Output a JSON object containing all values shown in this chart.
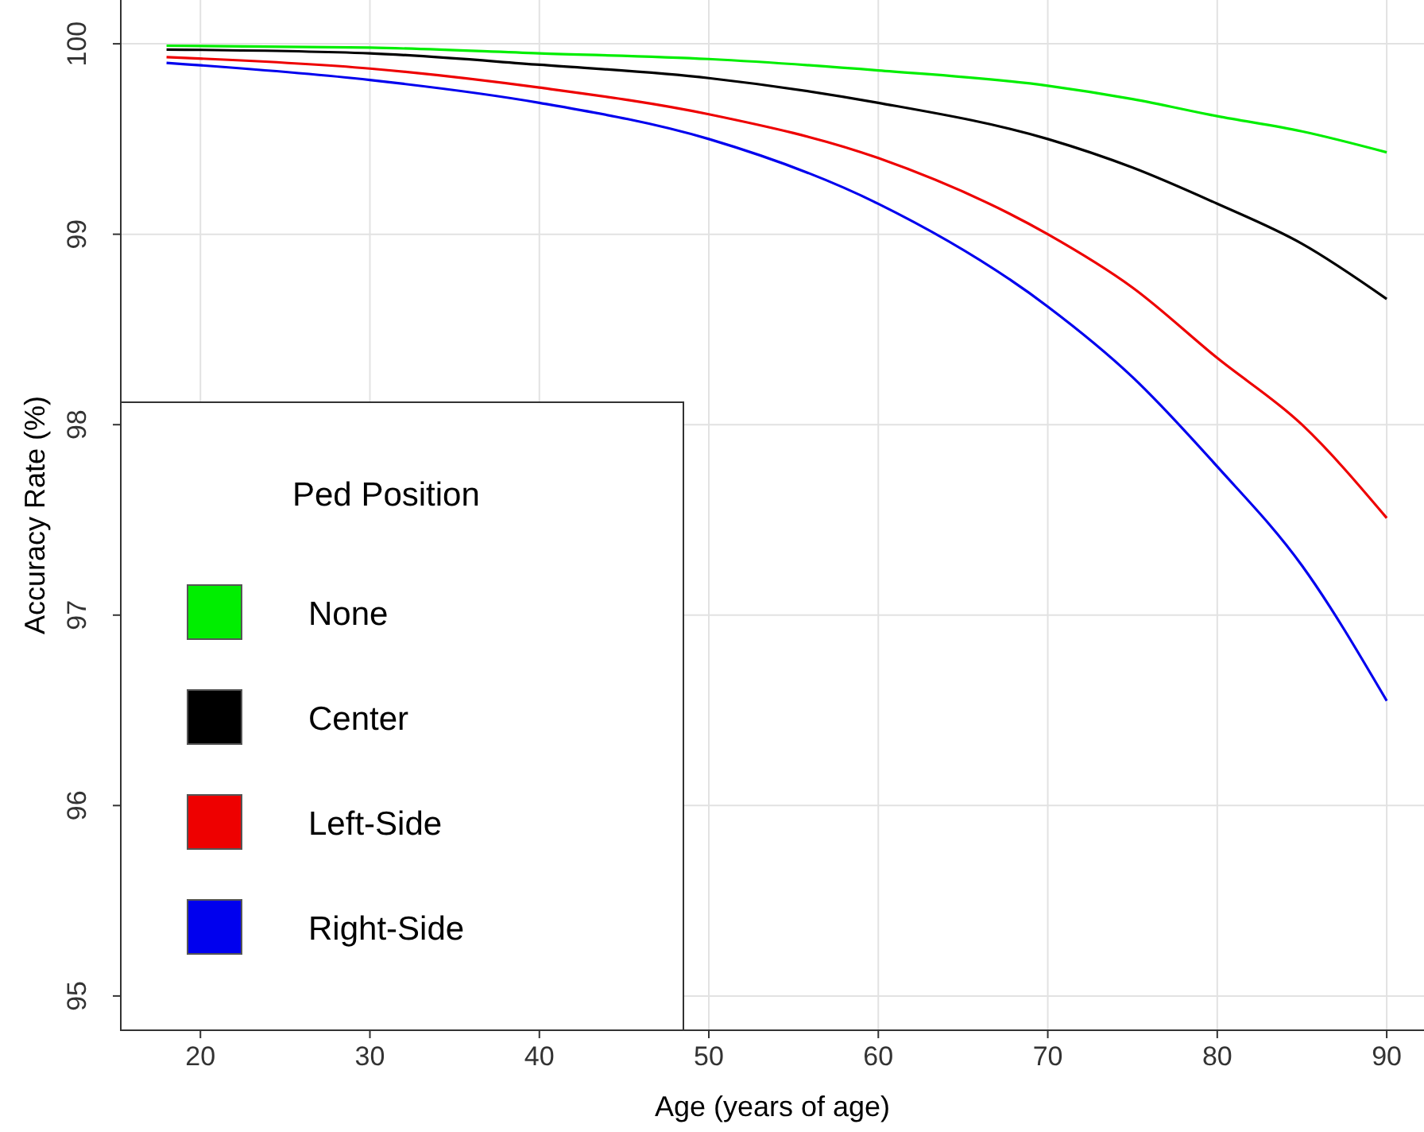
{
  "chart_data": {
    "type": "line",
    "xlabel": "Age (years of age)",
    "ylabel": "Accuracy Rate (%)",
    "legend_title": "Ped Position",
    "x": [
      18,
      30,
      40,
      50,
      60,
      70,
      75,
      80,
      85,
      90
    ],
    "series": [
      {
        "name": "None",
        "color": "#00ee00",
        "values": [
          99.99,
          99.98,
          99.95,
          99.92,
          99.86,
          99.78,
          99.71,
          99.62,
          99.54,
          99.43
        ]
      },
      {
        "name": "Center",
        "color": "#000000",
        "values": [
          99.97,
          99.95,
          99.89,
          99.82,
          99.69,
          99.5,
          99.35,
          99.16,
          98.95,
          98.66
        ]
      },
      {
        "name": "Left-Side",
        "color": "#ee0000",
        "values": [
          99.93,
          99.87,
          99.77,
          99.63,
          99.4,
          99.0,
          98.72,
          98.35,
          98.0,
          97.51
        ]
      },
      {
        "name": "Right-Side",
        "color": "#0000ee",
        "values": [
          99.9,
          99.81,
          99.69,
          99.5,
          99.16,
          98.62,
          98.25,
          97.78,
          97.26,
          96.55
        ]
      }
    ],
    "xlim": [
      15.3,
      92.2
    ],
    "ylim": [
      94.82,
      100.23
    ],
    "xticks": [
      20,
      30,
      40,
      50,
      60,
      70,
      80,
      90
    ],
    "yticks": [
      95,
      96,
      97,
      98,
      99,
      100
    ],
    "grid": true,
    "legend": "bottom left",
    "marker": "none",
    "line_style": "solid"
  }
}
